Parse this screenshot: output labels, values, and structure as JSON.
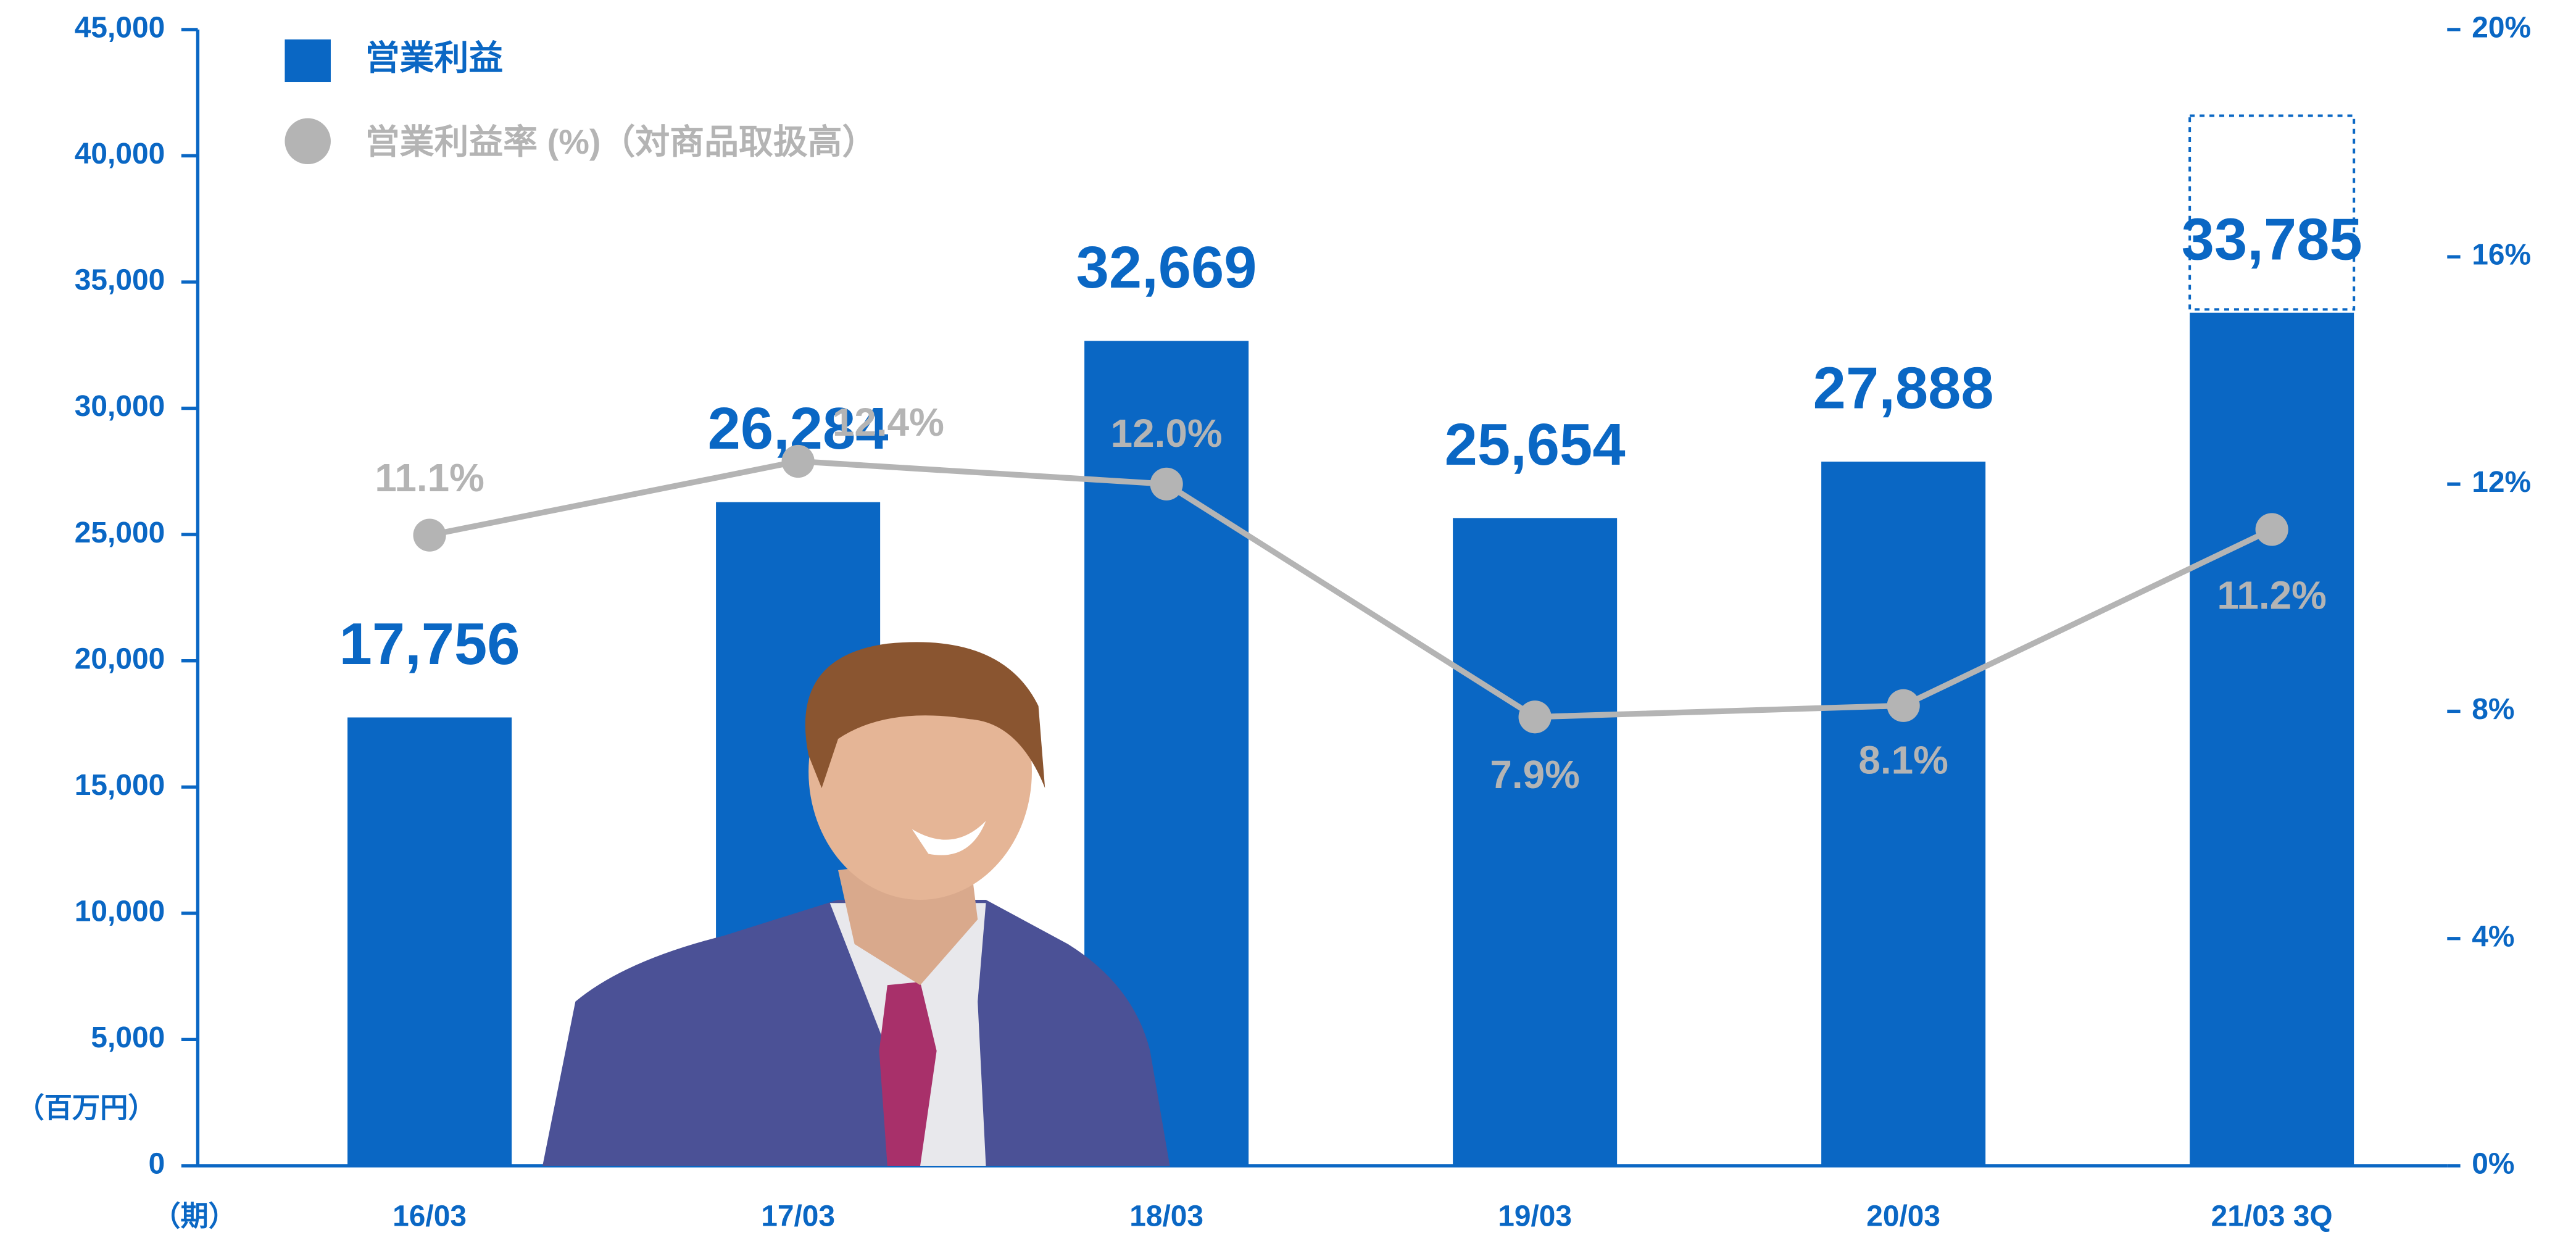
{
  "chart_data": {
    "type": "bar",
    "categories": [
      "16/03",
      "17/03",
      "18/03",
      "19/03",
      "20/03",
      "21/03 3Q"
    ],
    "series": [
      {
        "name": "営業利益",
        "type": "bar",
        "color": "#0a67c4",
        "values": [
          17756,
          26284,
          32669,
          25654,
          27888,
          33785
        ],
        "value_labels": [
          "17,756",
          "26,284",
          "32,669",
          "25,654",
          "27,888",
          "33,785"
        ]
      },
      {
        "name": "営業利益率 (%)（対商品取扱高）",
        "type": "line",
        "axis": "y2",
        "color": "#b4b4b4",
        "values": [
          11.1,
          12.4,
          12.0,
          7.9,
          8.1,
          11.2
        ],
        "value_labels": [
          "11.1%",
          "12.4%",
          "12.0%",
          "7.9%",
          "8.1%",
          "11.2%"
        ]
      }
    ],
    "ylabel": "（百万円）",
    "xlabel": "（期）",
    "ylim": [
      0,
      45000
    ],
    "yticks": [
      0,
      {
        "value": 5000,
        "label": "5,000"
      },
      {
        "value": 10000,
        "label": "10,000"
      },
      {
        "value": 15000,
        "label": "15,000"
      },
      {
        "value": 20000,
        "label": "20,000"
      },
      {
        "value": 25000,
        "label": "25,000"
      },
      {
        "value": 30000,
        "label": "30,000"
      },
      {
        "value": 35000,
        "label": "35,000"
      },
      {
        "value": 40000,
        "label": "40,000"
      },
      {
        "value": 45000,
        "label": "45,000"
      }
    ],
    "y2lim": [
      0,
      20
    ],
    "y2ticks": [
      {
        "value": 0,
        "label": "0%"
      },
      {
        "value": 4,
        "label": "4%"
      },
      {
        "value": 8,
        "label": "8%"
      },
      {
        "value": 12,
        "label": "12%"
      },
      {
        "value": 16,
        "label": "16%"
      },
      {
        "value": 20,
        "label": "20%"
      }
    ],
    "legend": "top-left"
  }
}
